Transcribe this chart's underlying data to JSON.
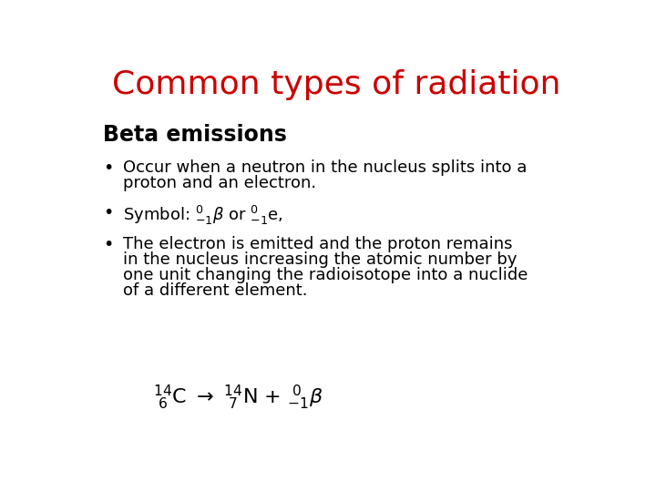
{
  "title": "Common types of radiation",
  "title_color": "#CC0000",
  "title_fontsize": 26,
  "subtitle": "Beta emissions",
  "subtitle_fontsize": 17,
  "background_color": "#FFFFFF",
  "text_color": "#000000",
  "bullet_fontsize": 13,
  "bullet1_line1": "Occur when a neutron in the nucleus splits into a",
  "bullet1_line2": "proton and an electron.",
  "bullet2": "Symbol: $\\mathregular{^0_{-1}}\\beta$ or $\\mathregular{^0_{-1}}$e,",
  "bullet3_line1": "The electron is emitted and the proton remains",
  "bullet3_line2": "in the nucleus increasing the atomic number by",
  "bullet3_line3": "one unit changing the radioisotope into a nuclide",
  "bullet3_line4": "of a different element.",
  "formula_fontsize": 13
}
